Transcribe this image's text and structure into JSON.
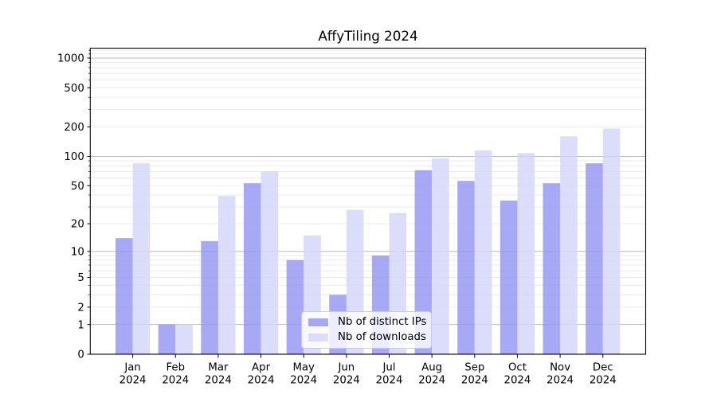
{
  "chart_data": {
    "type": "bar",
    "title": "AffyTiling 2024",
    "categories": [
      "Jan",
      "Feb",
      "Mar",
      "Apr",
      "May",
      "Jun",
      "Jul",
      "Aug",
      "Sep",
      "Oct",
      "Nov",
      "Dec"
    ],
    "x_year": "2024",
    "series": [
      {
        "name": "Nb of distinct IPs",
        "color": "#9496f2",
        "values": [
          14,
          1,
          13,
          53,
          8,
          3,
          9,
          72,
          56,
          35,
          53,
          85
        ]
      },
      {
        "name": "Nb of downloads",
        "color": "#d4d5f9",
        "values": [
          85,
          1,
          39,
          70,
          15,
          28,
          26,
          96,
          115,
          108,
          160,
          192
        ]
      }
    ],
    "yscale": "log1p",
    "yticks": [
      0,
      1,
      2,
      5,
      10,
      20,
      50,
      100,
      200,
      500,
      1000
    ],
    "ylim": [
      0,
      1290
    ],
    "grid": true,
    "legend_position": "lower center",
    "style": {
      "bar_alpha": 0.82,
      "major_grid_color": "#b9b9b9",
      "minor_grid_color": "#e9e9e9",
      "axis_color": "#000000",
      "text_color": "#000000",
      "legend_border": "#cccccc",
      "legend_bg": "rgba(255,255,255,0.8)",
      "background": "#ffffff"
    }
  }
}
